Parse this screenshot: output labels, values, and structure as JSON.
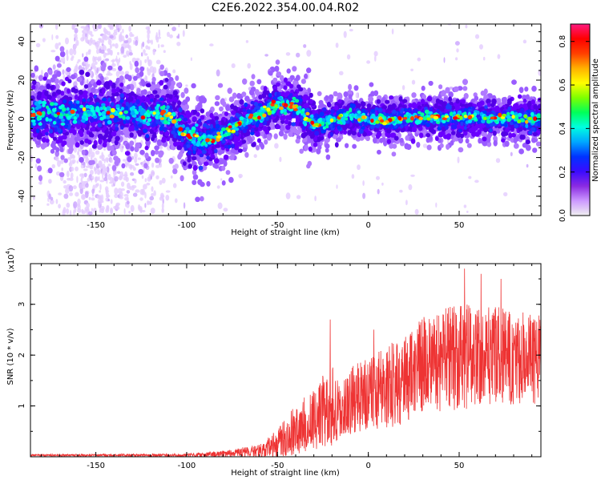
{
  "title": "C2E6.2022.354.00.04.R02",
  "colorbar": {
    "label": "Normalized spectral amplitude",
    "ticks": [
      "0.0",
      "0.2",
      "0.4",
      "0.6",
      "0.8"
    ],
    "range": [
      0,
      0.88
    ],
    "colormap": [
      "#f0f0f0",
      "#cc99ff",
      "#8a2be2",
      "#3a0bff",
      "#0033ff",
      "#00a8ff",
      "#00ffe0",
      "#00ff5a",
      "#7dff00",
      "#ffff00",
      "#ffb000",
      "#ff4000",
      "#ff0000",
      "#ff1a80"
    ]
  },
  "chart_data": [
    {
      "type": "heatmap",
      "xlabel": "Height of straight line (km)",
      "ylabel": "Frequency (Hz)",
      "xlim": [
        -186,
        95
      ],
      "ylim": [
        -50,
        49
      ],
      "xticks": [
        -150,
        -100,
        -50,
        0,
        50
      ],
      "yticks": [
        -40,
        -20,
        0,
        20,
        40
      ],
      "ridge": {
        "x": [
          -186,
          -150,
          -110,
          -100,
          -90,
          -80,
          -70,
          -60,
          -50,
          -40,
          -30,
          -20,
          -10,
          0,
          10,
          20,
          40,
          60,
          80,
          95
        ],
        "freq": [
          2,
          3,
          2,
          -8,
          -11,
          -8,
          -2,
          2,
          8,
          6,
          -3,
          -1,
          2,
          0,
          -1,
          0,
          1,
          1,
          0,
          0
        ]
      },
      "grid": false
    },
    {
      "type": "line",
      "xlabel": "Height of straight line (km)",
      "ylabel": "SNR (10 * v/v)",
      "multiplier_label": "(x10",
      "multiplier_exp": "4",
      "multiplier_close": ")",
      "xlim": [
        -186,
        95
      ],
      "ylim": [
        0,
        3.8
      ],
      "xticks": [
        -150,
        -100,
        -50,
        0,
        50
      ],
      "yticks": [
        1,
        2,
        3
      ],
      "color": "#ee3333",
      "envelope": {
        "x": [
          -186,
          -100,
          -80,
          -60,
          -50,
          -40,
          -30,
          -25,
          -20,
          -15,
          -10,
          0,
          10,
          20,
          30,
          40,
          50,
          60,
          70,
          80,
          95
        ],
        "mean": [
          0.03,
          0.03,
          0.06,
          0.12,
          0.25,
          0.55,
          0.7,
          0.9,
          1.0,
          0.85,
          1.1,
          1.25,
          1.35,
          1.55,
          1.8,
          1.9,
          1.95,
          2.0,
          2.0,
          1.95,
          1.9
        ],
        "spread": [
          0.02,
          0.03,
          0.06,
          0.12,
          0.3,
          0.5,
          0.6,
          0.7,
          0.8,
          0.5,
          0.7,
          0.7,
          0.8,
          0.9,
          0.95,
          1.0,
          1.05,
          1.0,
          0.95,
          0.95,
          0.9
        ]
      },
      "peaks": [
        {
          "x": -21,
          "y": 2.7
        },
        {
          "x": 53,
          "y": 3.7
        },
        {
          "x": 62,
          "y": 3.6
        },
        {
          "x": 73,
          "y": 3.5
        },
        {
          "x": 3,
          "y": 2.5
        }
      ],
      "grid": false
    }
  ]
}
